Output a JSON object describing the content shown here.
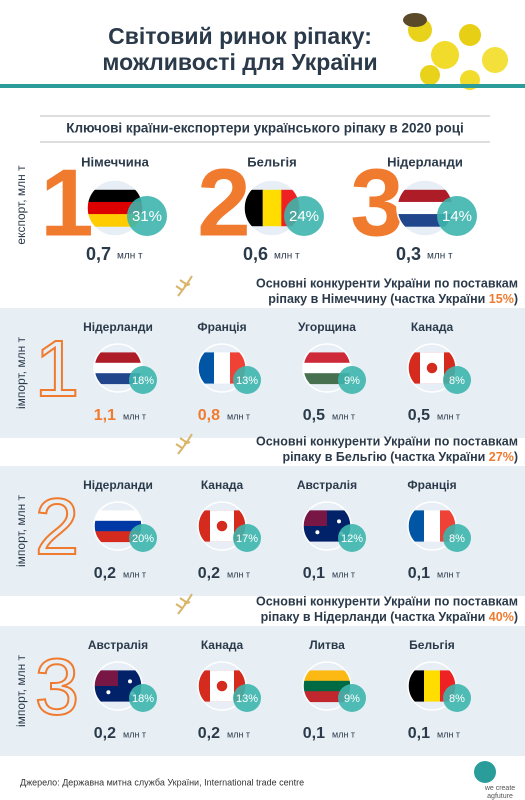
{
  "header": {
    "title_line1": "Світовий ринок ріпаку:",
    "title_line2": "можливості для України"
  },
  "exporters": {
    "title": "Ключові країни-експортери українського ріпаку в 2020 році",
    "axis_label": "експорт, млн т",
    "items": [
      {
        "rank": 1,
        "name": "Німеччина",
        "share": "31%",
        "value": "0,7",
        "unit": "млн т"
      },
      {
        "rank": 2,
        "name": "Бельгія",
        "share": "24%",
        "value": "0,6",
        "unit": "млн т"
      },
      {
        "rank": 3,
        "name": "Нідерланди",
        "share": "14%",
        "value": "0,3",
        "unit": "млн т"
      }
    ]
  },
  "sections": [
    {
      "rank": 1,
      "line1": "Основні конкуренти України по поставкам",
      "line2": [
        "ріпаку в Німеччину (частка України ",
        "15%",
        ")"
      ],
      "axis_label": "імпорт, млн т",
      "items": [
        {
          "name": "Нідерланди",
          "share": "18%",
          "value": "1,1",
          "unit": "млн т"
        },
        {
          "name": "Франція",
          "share": "13%",
          "value": "0,8",
          "unit": "млн т"
        },
        {
          "name": "Угорщина",
          "share": "9%",
          "value": "0,5",
          "unit": "млн т"
        },
        {
          "name": "Канада",
          "share": "8%",
          "value": "0,5",
          "unit": "млн т"
        }
      ]
    },
    {
      "rank": 2,
      "line1": "Основні конкуренти України по поставкам",
      "line2": [
        "ріпаку в Бельгію (частка України ",
        "27%",
        ")"
      ],
      "axis_label": "імпорт, млн т",
      "items": [
        {
          "name": "Нідерланди",
          "share": "20%",
          "value": "0,2",
          "unit": "млн т"
        },
        {
          "name": "Канада",
          "share": "17%",
          "value": "0,2",
          "unit": "млн т"
        },
        {
          "name": "Австралія",
          "share": "12%",
          "value": "0,1",
          "unit": "млн т"
        },
        {
          "name": "Франція",
          "share": "8%",
          "value": "0,1",
          "unit": "млн т"
        }
      ]
    },
    {
      "rank": 3,
      "line1": "Основні конкуренти України по поставкам",
      "line2": [
        "ріпаку в Нідерланди (частка України ",
        "40%",
        ")"
      ],
      "axis_label": "імпорт, млн т",
      "items": [
        {
          "name": "Австралія",
          "share": "18%",
          "value": "0,2",
          "unit": "млн т"
        },
        {
          "name": "Канада",
          "share": "13%",
          "value": "0,2",
          "unit": "млн т"
        },
        {
          "name": "Литва",
          "share": "9%",
          "value": "0,1",
          "unit": "млн т"
        },
        {
          "name": "Бельгія",
          "share": "8%",
          "value": "0,1",
          "unit": "млн т"
        }
      ]
    }
  ],
  "footer": {
    "source": "Джерело: Державна митна служба України, International trade centre",
    "logo_line1": "we create",
    "logo_line2": "agfuture"
  }
}
